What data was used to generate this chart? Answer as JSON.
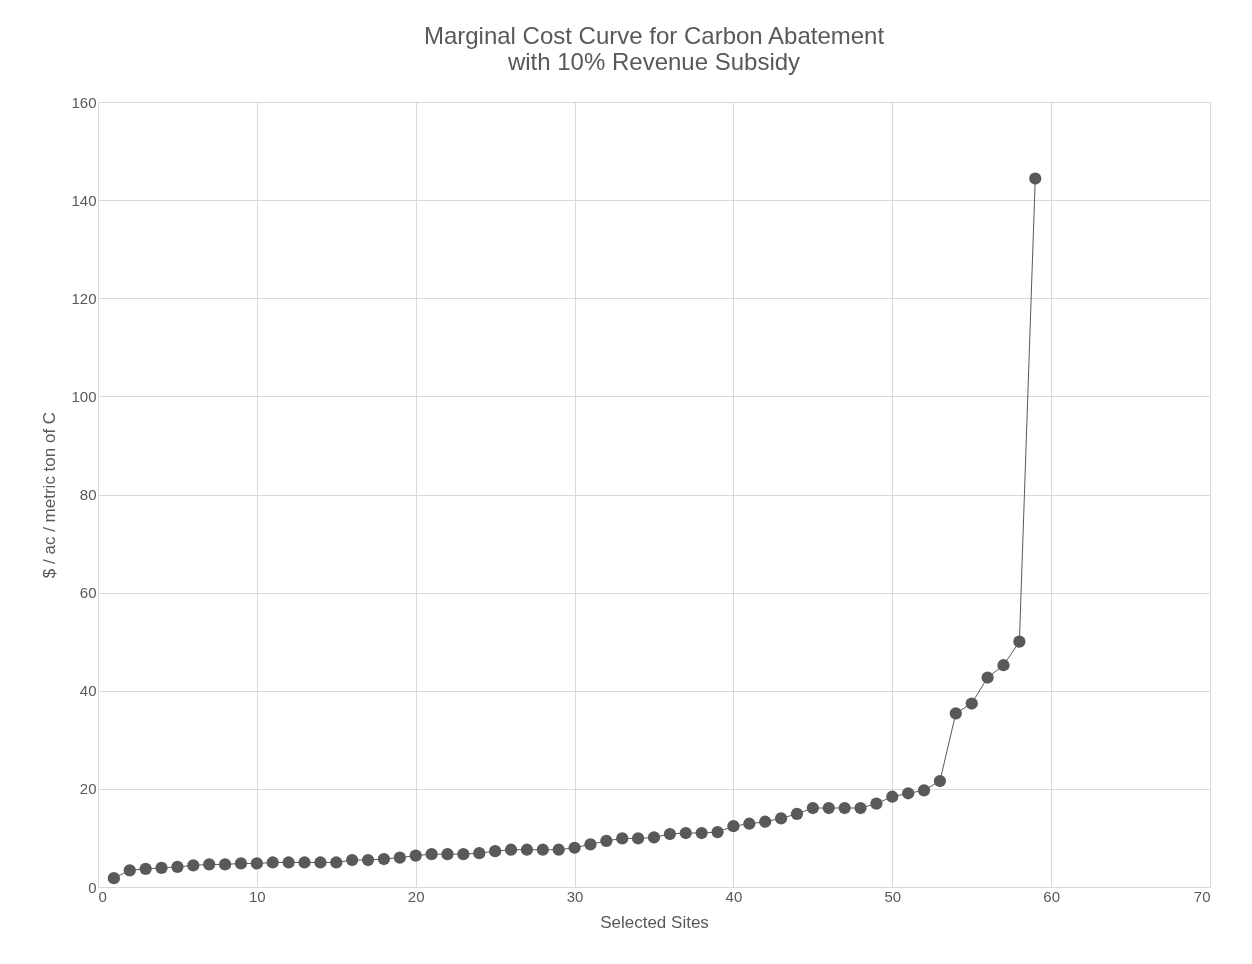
{
  "chart_data": {
    "type": "line",
    "title": "Marginal Cost Curve for Carbon Abatement\nwith 10% Revenue Subsidy",
    "xlabel": "Selected Sites",
    "ylabel": "$ / ac / metric ton of C",
    "x": [
      1,
      2,
      3,
      4,
      5,
      6,
      7,
      8,
      9,
      10,
      11,
      12,
      13,
      14,
      15,
      16,
      17,
      18,
      19,
      20,
      21,
      22,
      23,
      24,
      25,
      26,
      27,
      28,
      29,
      30,
      31,
      32,
      33,
      34,
      35,
      36,
      37,
      38,
      39,
      40,
      41,
      42,
      43,
      44,
      45,
      46,
      47,
      48,
      49,
      50,
      51,
      52,
      53,
      54,
      55,
      56,
      57,
      58,
      59
    ],
    "series": [
      {
        "color": "#595959",
        "values": [
          1.8,
          3.4,
          3.7,
          3.9,
          4.1,
          4.4,
          4.6,
          4.6,
          4.8,
          4.8,
          5.0,
          5.0,
          5.0,
          5.0,
          5.0,
          5.5,
          5.5,
          5.7,
          6.0,
          6.4,
          6.7,
          6.7,
          6.7,
          6.9,
          7.3,
          7.6,
          7.6,
          7.6,
          7.6,
          8.0,
          8.7,
          9.4,
          9.9,
          9.9,
          10.1,
          10.8,
          11.0,
          11.0,
          11.2,
          12.4,
          12.9,
          13.3,
          14.0,
          14.9,
          16.1,
          16.1,
          16.1,
          16.1,
          17.0,
          18.4,
          19.1,
          19.7,
          21.6,
          35.4,
          37.4,
          42.7,
          45.2,
          50.0,
          144.4
        ]
      }
    ],
    "xlim": [
      0,
      70
    ],
    "xticks": [
      0,
      10,
      20,
      30,
      40,
      50,
      60,
      70
    ],
    "ylim": [
      0,
      160
    ],
    "yticks": [
      0,
      20,
      40,
      60,
      80,
      100,
      120,
      140,
      160
    ],
    "grid": true,
    "marker": "circle",
    "line_style": "solid"
  }
}
